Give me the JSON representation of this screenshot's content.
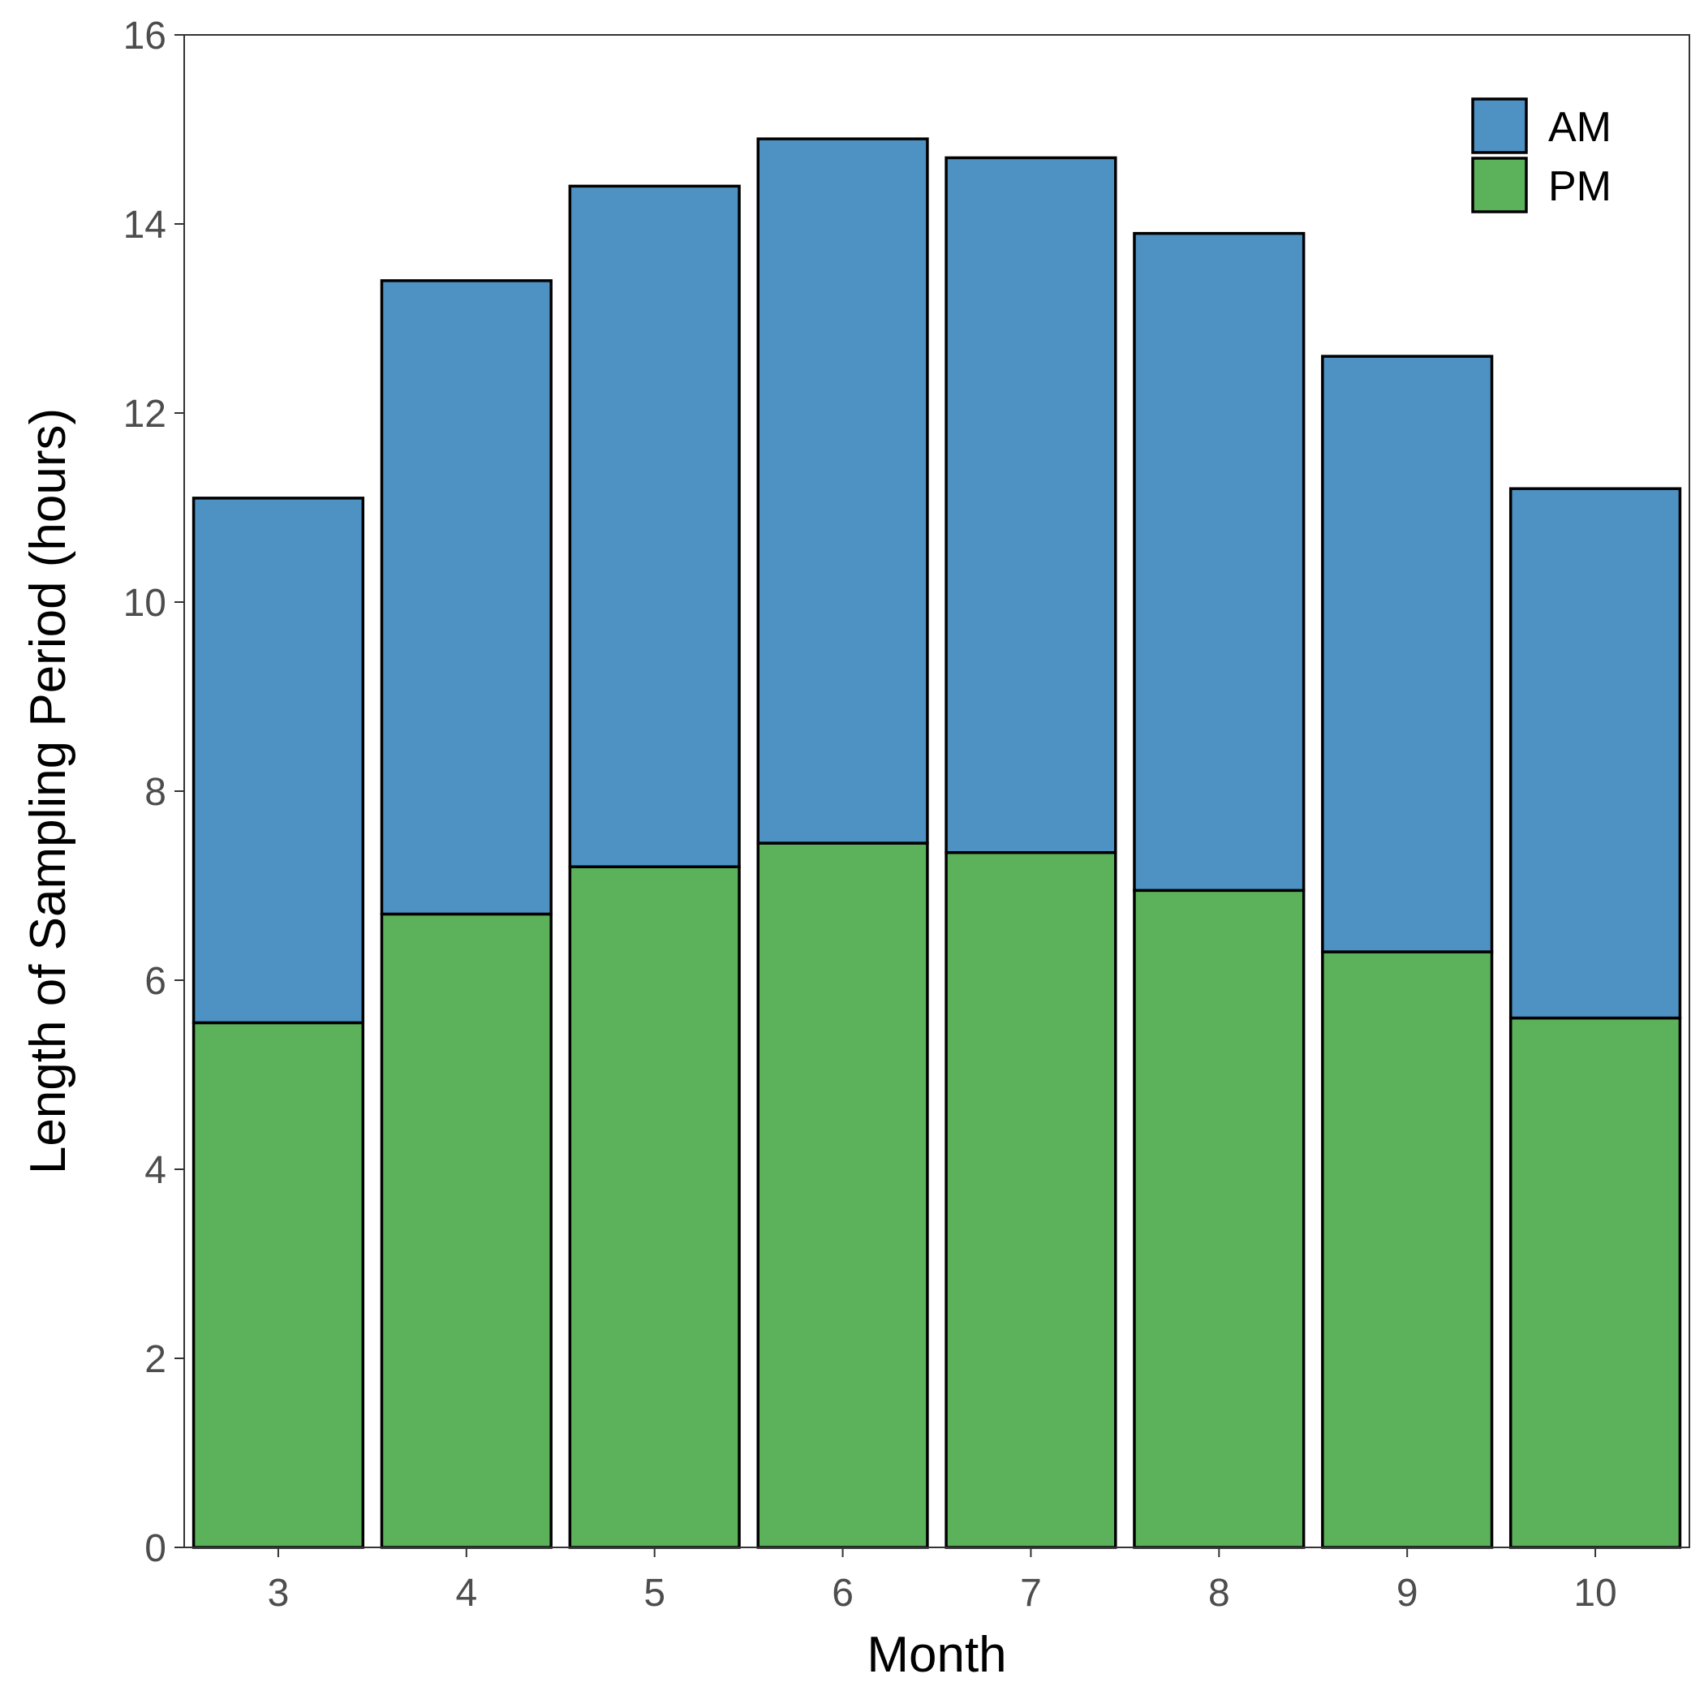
{
  "chart_data": {
    "type": "bar",
    "stacked": true,
    "title": "",
    "xlabel": "Month",
    "ylabel": "Length of Sampling Period (hours)",
    "categories": [
      "3",
      "4",
      "5",
      "6",
      "7",
      "8",
      "9",
      "10"
    ],
    "series": [
      {
        "name": "PM",
        "color": "#5cb25a",
        "values": [
          5.55,
          6.7,
          7.2,
          7.45,
          7.35,
          6.95,
          6.3,
          5.6
        ]
      },
      {
        "name": "AM",
        "color": "#4d92c3",
        "values": [
          5.55,
          6.7,
          7.2,
          7.45,
          7.35,
          6.95,
          6.3,
          5.6
        ]
      }
    ],
    "ylim": [
      0,
      16
    ],
    "yticks": [
      0,
      2,
      4,
      6,
      8,
      10,
      12,
      14,
      16
    ],
    "legend": {
      "position": "top-right",
      "entries": [
        "AM",
        "PM"
      ]
    },
    "grid": false
  }
}
